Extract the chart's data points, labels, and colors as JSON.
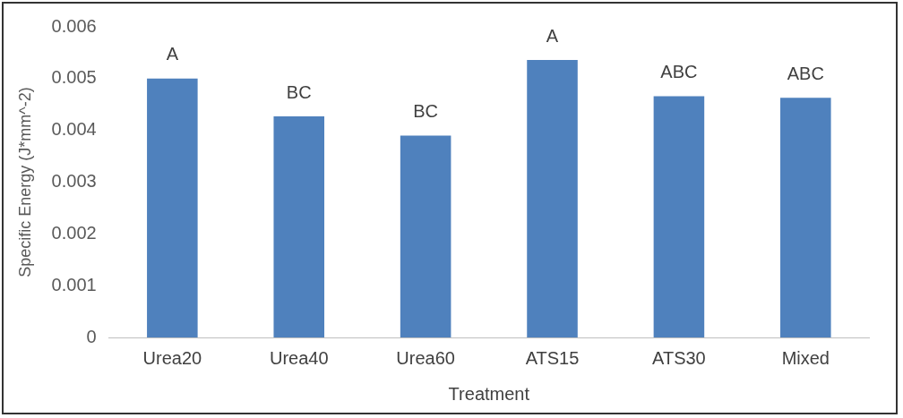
{
  "chart_data": {
    "type": "bar",
    "xlabel": "Treatment",
    "ylabel": "Specific Energy (J*mm^-2)",
    "categories": [
      "Urea20",
      "Urea40",
      "Urea60",
      "ATS15",
      "ATS30",
      "Mixed"
    ],
    "values": [
      0.005,
      0.00427,
      0.0039,
      0.00536,
      0.00466,
      0.00463
    ],
    "color": "#4f81bd",
    "ylim": [
      0,
      0.006
    ],
    "yticks": [
      0,
      0.001,
      0.002,
      0.003,
      0.004,
      0.005,
      0.006
    ],
    "grid": false,
    "legend": false,
    "annotations": [
      {
        "text": "A",
        "x": "Urea20",
        "y": 0.005
      },
      {
        "text": "BC",
        "x": "Urea40",
        "y": 0.00427
      },
      {
        "text": "BC",
        "x": "Urea60",
        "y": 0.0039
      },
      {
        "text": "A",
        "x": "ATS15",
        "y": 0.00536
      },
      {
        "text": "ABC",
        "x": "ATS30",
        "y": 0.00466
      },
      {
        "text": "ABC",
        "x": "Mixed",
        "y": 0.00463
      }
    ]
  }
}
